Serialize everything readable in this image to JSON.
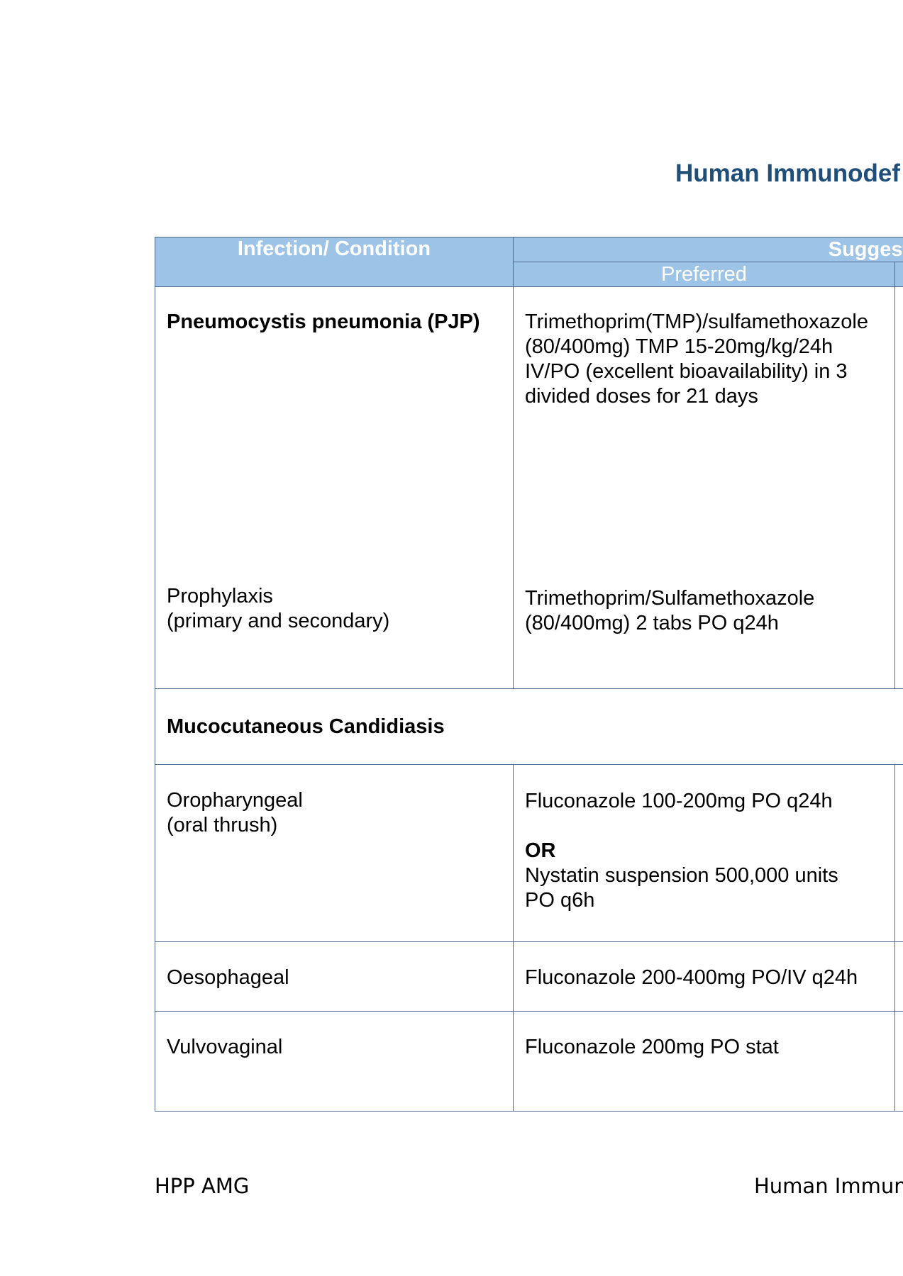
{
  "title": "Human Immunodef",
  "table": {
    "header": {
      "condition": "Infection/ Condition",
      "suggested": "Suggested",
      "preferred": "Preferred"
    },
    "rows": {
      "pjp": {
        "condition": "Pneumocystis pneumonia (PJP)",
        "preferred_lines": [
          "Trimethoprim(TMP)/sulfamethoxazole",
          "(80/400mg) TMP 15-20mg/kg/24h",
          "IV/PO (excellent bioavailability) in 3",
          "divided doses for 21 days"
        ],
        "prophylaxis_lines": [
          "Prophylaxis",
          "(primary and secondary)"
        ],
        "prophylaxis_preferred_lines": [
          "Trimethoprim/Sulfamethoxazole",
          "(80/400mg) 2 tabs PO q24h"
        ]
      },
      "candidiasis": {
        "section": "Mucocutaneous Candidiasis"
      },
      "oropharyngeal": {
        "condition_lines": [
          "Oropharyngeal",
          "(oral thrush)"
        ],
        "preferred_line1": "Fluconazole 100-200mg PO q24h",
        "or": "OR",
        "preferred_lines2": [
          "Nystatin suspension 500,000 units",
          "PO q6h"
        ]
      },
      "oesophageal": {
        "condition": "Oesophageal",
        "preferred": "Fluconazole 200-400mg PO/IV q24h"
      },
      "vulvovaginal": {
        "condition": "Vulvovaginal",
        "preferred": "Fluconazole 200mg PO stat"
      }
    }
  },
  "footer": {
    "left": "HPP AMG",
    "right": "Human Immunc"
  }
}
